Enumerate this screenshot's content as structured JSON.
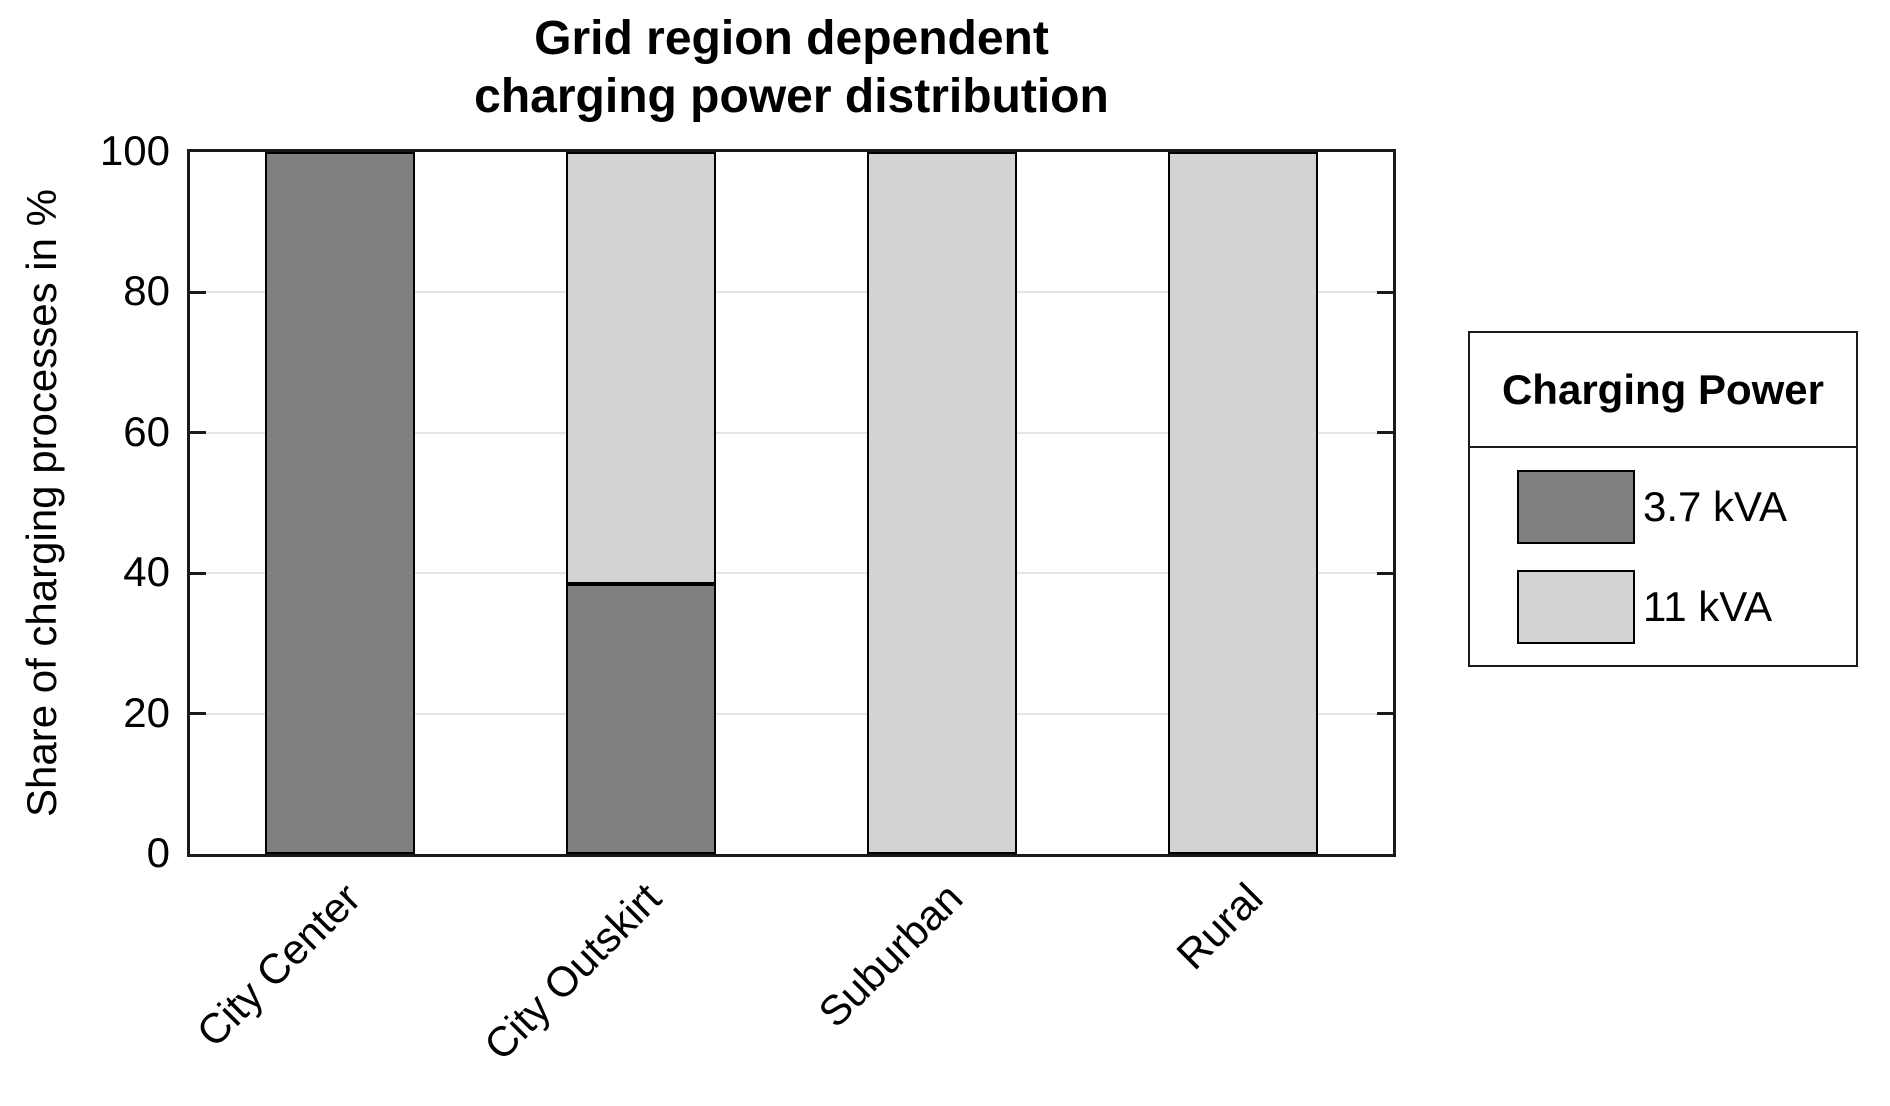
{
  "title": {
    "line1": "Grid region dependent",
    "line2": "charging power distribution"
  },
  "y_axis": {
    "label": "Share of charging processes in %"
  },
  "legend": {
    "title": "Charging Power",
    "entries": [
      {
        "label": "3.7 kVA",
        "color": "#808080"
      },
      {
        "label": "11 kVA",
        "color": "#d3d3d3"
      }
    ]
  },
  "colors": {
    "bar_dark": "#808080",
    "bar_light": "#d3d3d3",
    "bar_border": "#000000",
    "axis": "#1a1a1a",
    "grid": "#e5e5e5",
    "text": "#000000",
    "background": "#ffffff"
  },
  "chart_data": {
    "type": "bar",
    "stacked": true,
    "title": "Grid region dependent charging power distribution",
    "categories": [
      "City Center",
      "City Outskirt",
      "Suburban",
      "Rural"
    ],
    "series": [
      {
        "name": "3.7 kVA",
        "color": "#808080",
        "values": [
          100,
          38.5,
          0,
          0
        ]
      },
      {
        "name": "11 kVA",
        "color": "#d3d3d3",
        "values": [
          0,
          61.5,
          100,
          100
        ]
      }
    ],
    "xlabel": "",
    "ylabel": "Share of charging processes in %",
    "ylim": [
      0,
      100
    ],
    "yticks": [
      0,
      20,
      40,
      60,
      80,
      100
    ],
    "grid": "horizontal",
    "grid_color": "#e5e5e5",
    "x_tick_rotation_deg": 45,
    "legend_title": "Charging Power",
    "legend_position": "right-outside",
    "bar_relative_width": 0.5,
    "axes_box": true,
    "tick_direction": "in"
  }
}
